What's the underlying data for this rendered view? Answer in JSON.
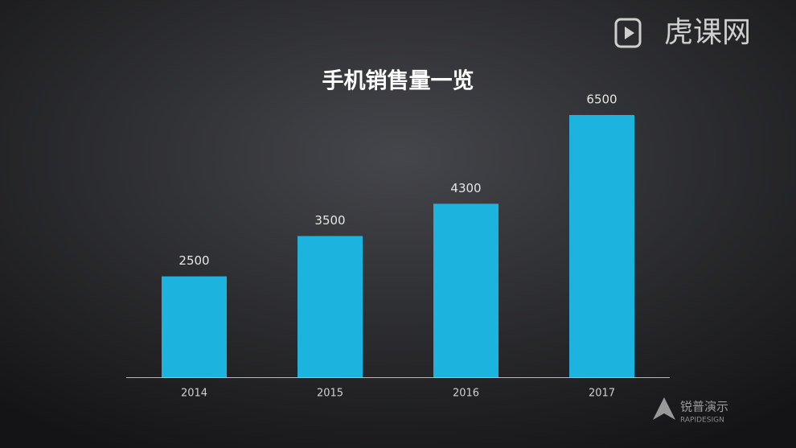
{
  "chart_data": {
    "type": "bar",
    "title": "手机销售量一览",
    "categories": [
      "2014",
      "2015",
      "2016",
      "2017"
    ],
    "values": [
      2500,
      3500,
      4300,
      6500
    ],
    "color": "#1cb4df",
    "annotations": [
      "虎课网",
      "锐普演示",
      "RAPIDESIGN"
    ]
  }
}
